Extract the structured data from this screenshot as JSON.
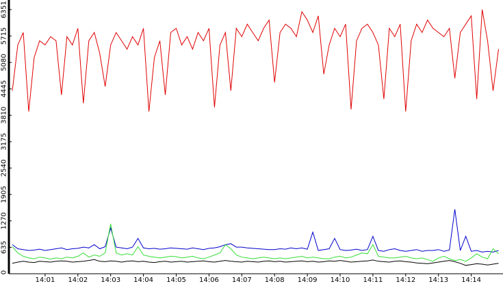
{
  "chart_data": {
    "type": "line",
    "categories": [
      null,
      null,
      null,
      null,
      null,
      null,
      "14:01",
      null,
      null,
      null,
      null,
      null,
      "14:02",
      null,
      null,
      null,
      null,
      null,
      "14:03",
      null,
      null,
      null,
      null,
      null,
      "14:04",
      null,
      null,
      null,
      null,
      null,
      "14:05",
      null,
      null,
      null,
      null,
      null,
      "14:06",
      null,
      null,
      null,
      null,
      null,
      "14:07",
      null,
      null,
      null,
      null,
      null,
      "14:08",
      null,
      null,
      null,
      null,
      null,
      "14:09",
      null,
      null,
      null,
      null,
      null,
      "14:10",
      null,
      null,
      null,
      null,
      null,
      "14:11",
      null,
      null,
      null,
      null,
      null,
      "14:12",
      null,
      null,
      null,
      null,
      null,
      "14:13",
      null,
      null,
      null,
      null,
      null,
      "14:14",
      null,
      null,
      null,
      null,
      null
    ],
    "series": [
      {
        "color": "#e00000",
        "values": [
          4400,
          5500,
          5800,
          3900,
          5200,
          5600,
          5500,
          5700,
          5600,
          4300,
          5700,
          5500,
          5900,
          4100,
          5600,
          5800,
          5300,
          4500,
          5500,
          5800,
          5600,
          5400,
          5700,
          5500,
          5900,
          3900,
          5200,
          5600,
          4300,
          5800,
          5900,
          5500,
          5700,
          5400,
          5800,
          5600,
          5900,
          4000,
          5500,
          5800,
          4400,
          5900,
          5700,
          6000,
          5800,
          5600,
          5900,
          6100,
          4600,
          5800,
          6000,
          5900,
          5700,
          6300,
          6100,
          5800,
          6200,
          4800,
          5500,
          5900,
          5700,
          6000,
          3950,
          5600,
          5900,
          6000,
          5800,
          5500,
          4200,
          5900,
          5700,
          6000,
          3900,
          5600,
          6000,
          5800,
          6100,
          5900,
          5800,
          5700,
          5900,
          4700,
          5800,
          6000,
          6200,
          4200,
          6351,
          5600,
          4400,
          5400
        ]
      },
      {
        "color": "#0000cc",
        "values": [
          700,
          600,
          580,
          560,
          570,
          590,
          560,
          580,
          600,
          620,
          580,
          600,
          610,
          640,
          620,
          700,
          600,
          650,
          1100,
          640,
          620,
          600,
          640,
          850,
          620,
          600,
          610,
          590,
          600,
          620,
          610,
          600,
          590,
          620,
          600,
          580,
          610,
          620,
          650,
          700,
          720,
          640,
          640,
          620,
          610,
          600,
          590,
          580,
          580,
          600,
          590,
          620,
          600,
          620,
          590,
          1000,
          560,
          580,
          600,
          850,
          580,
          560,
          570,
          590,
          560,
          580,
          900,
          560,
          540,
          580,
          600,
          560,
          540,
          560,
          580,
          540,
          560,
          560,
          580,
          540,
          570,
          1550,
          560,
          900,
          540,
          560,
          520,
          540,
          520,
          560
        ]
      },
      {
        "color": "#33dd33",
        "values": [
          650,
          500,
          420,
          380,
          360,
          400,
          380,
          350,
          380,
          360,
          400,
          380,
          420,
          500,
          400,
          450,
          420,
          500,
          1200,
          500,
          450,
          480,
          450,
          650,
          450,
          420,
          400,
          380,
          400,
          420,
          410,
          380,
          400,
          420,
          380,
          360,
          400,
          450,
          500,
          700,
          600,
          450,
          400,
          380,
          360,
          380,
          400,
          380,
          360,
          380,
          360,
          380,
          400,
          420,
          380,
          400,
          380,
          360,
          360,
          400,
          420,
          380,
          400,
          450,
          500,
          480,
          700,
          420,
          400,
          380,
          380,
          400,
          420,
          380,
          360,
          380,
          340,
          300,
          380,
          420,
          360,
          320,
          340,
          300,
          380,
          480,
          400,
          360,
          600,
          480
        ]
      },
      {
        "color": "#000000",
        "values": [
          250,
          280,
          300,
          280,
          270,
          300,
          290,
          280,
          300,
          310,
          300,
          280,
          290,
          300,
          320,
          340,
          300,
          290,
          310,
          300,
          280,
          300,
          310,
          290,
          300,
          280,
          270,
          290,
          300,
          280,
          290,
          300,
          280,
          290,
          300,
          310,
          290,
          280,
          300,
          320,
          300,
          290,
          280,
          300,
          290,
          280,
          300,
          310,
          290,
          300,
          280,
          290,
          300,
          310,
          290,
          300,
          280,
          290,
          310,
          300,
          320,
          300,
          280,
          290,
          300,
          310,
          330,
          300,
          290,
          280,
          300,
          310,
          290,
          280,
          260,
          250,
          240,
          260,
          280,
          300,
          320,
          290,
          250,
          200,
          220,
          240,
          230,
          210,
          230,
          250
        ]
      }
    ],
    "ylim": [
      0,
      6351
    ],
    "yticks": [
      0,
      635,
      1270,
      1905,
      2540,
      3175,
      3810,
      4445,
      5080,
      5715,
      6351
    ]
  }
}
